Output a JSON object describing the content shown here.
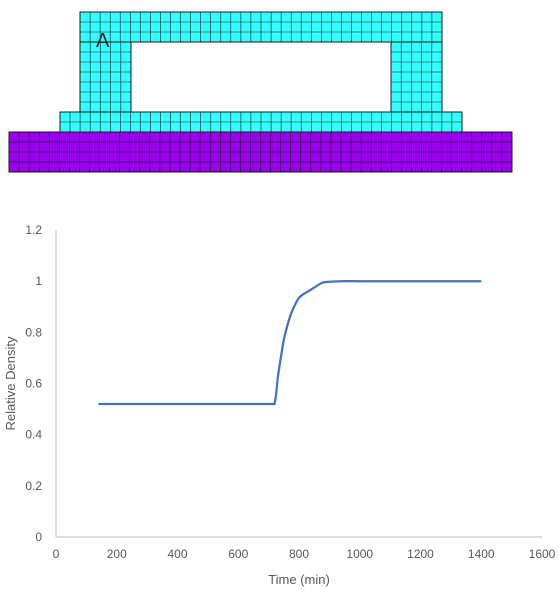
{
  "mesh": {
    "point_label": "A",
    "colors": {
      "frame": "#33ffff",
      "substrate": "#9900ee",
      "grid": "#1a1a1a"
    }
  },
  "chart_data": {
    "type": "line",
    "title": "",
    "xlabel": "Time (min)",
    "ylabel": "Relative Density",
    "xlim": [
      0,
      1600
    ],
    "ylim": [
      0,
      1.2
    ],
    "xticks": [
      0,
      200,
      400,
      600,
      800,
      1000,
      1200,
      1400,
      1600
    ],
    "yticks": [
      0,
      0.2,
      0.4,
      0.6,
      0.8,
      1,
      1.2
    ],
    "xtick_labels": [
      "0",
      "200",
      "400",
      "600",
      "800",
      "1000",
      "1200",
      "1400",
      "1600"
    ],
    "ytick_labels": [
      "0",
      "0.2",
      "0.4",
      "0.6",
      "0.8",
      "1",
      "1.2"
    ],
    "grid": false,
    "legend": "none",
    "line_color": "#4472c4",
    "series": [
      {
        "x": [
          140,
          300,
          500,
          700,
          715,
          720,
          725,
          730,
          740,
          750,
          760,
          770,
          780,
          790,
          800,
          815,
          830,
          850,
          870,
          880,
          900,
          940,
          1000,
          1200,
          1400
        ],
        "y": [
          0.52,
          0.52,
          0.52,
          0.52,
          0.52,
          0.525,
          0.56,
          0.62,
          0.7,
          0.77,
          0.82,
          0.86,
          0.89,
          0.915,
          0.935,
          0.95,
          0.96,
          0.975,
          0.99,
          0.995,
          0.998,
          1.0,
          1.0,
          1.0,
          1.0
        ]
      }
    ]
  }
}
